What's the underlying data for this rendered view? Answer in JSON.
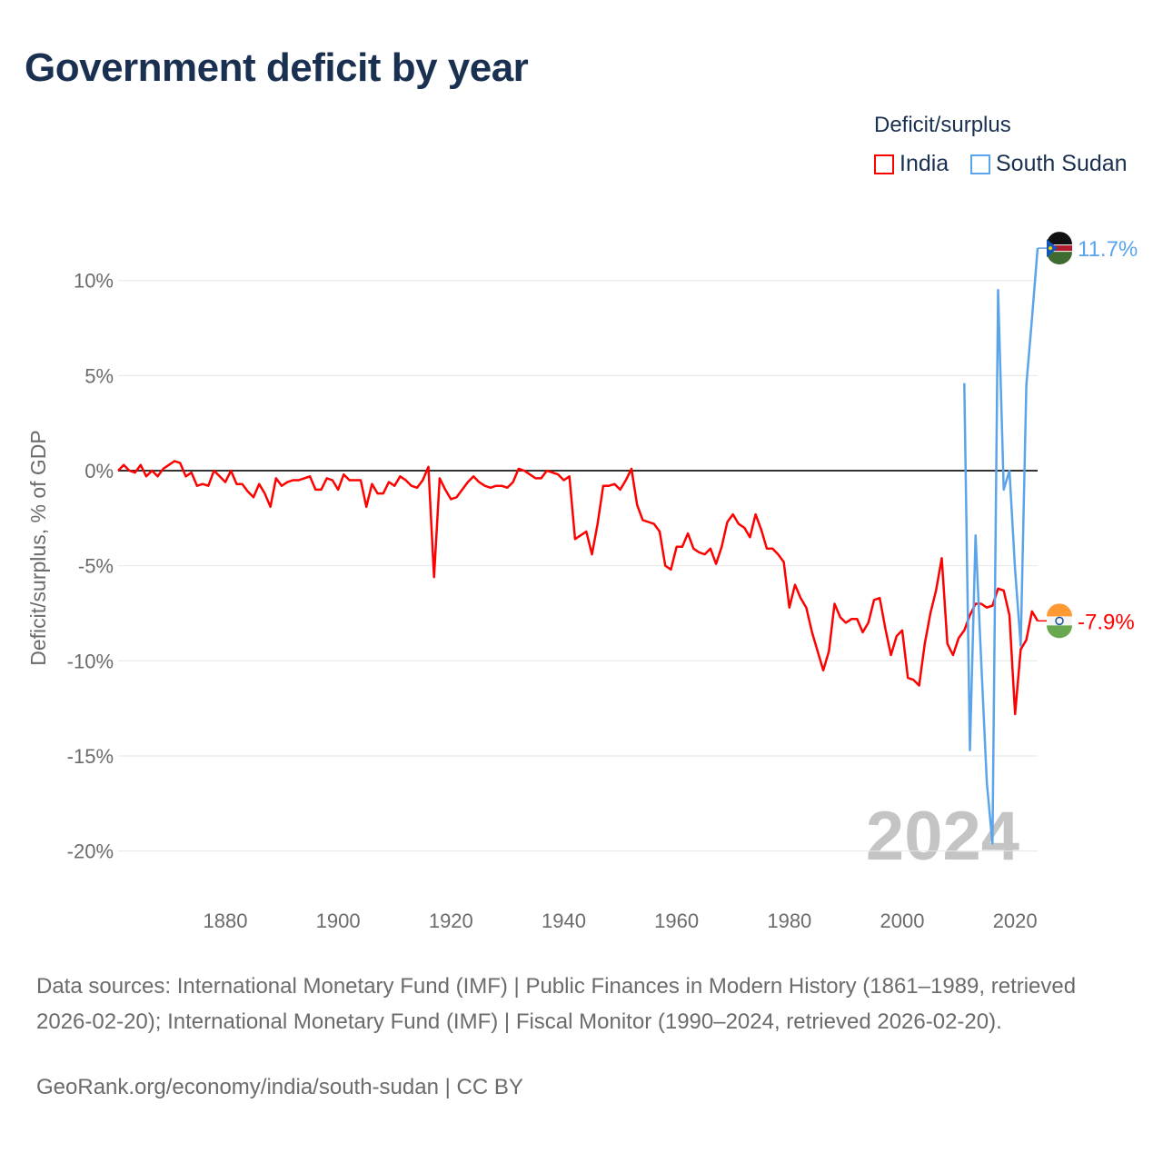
{
  "title": "Government deficit by year",
  "legend": {
    "title": "Deficit/surplus",
    "items": [
      {
        "name": "India",
        "color": "#ff0000"
      },
      {
        "name": "South Sudan",
        "color": "#5ba4ea"
      }
    ]
  },
  "source": "Data sources: International Monetary Fund (IMF) | Public Finances in Modern History (1861–1989, retrieved 2026-02-20); International Monetary Fund (IMF) | Fiscal Monitor (1990–2024, retrieved 2026-02-20).",
  "credit": "GeoRank.org/economy/india/south-sudan | CC BY",
  "chart_data": {
    "type": "line",
    "title": "Government deficit by year",
    "ylabel": "Deficit/surplus, % of GDP",
    "xlabel": "",
    "year_watermark": "2024",
    "xlim": [
      1861,
      2024
    ],
    "ylim": [
      -20,
      11.7
    ],
    "xticks": [
      1880,
      1900,
      1920,
      1940,
      1960,
      1980,
      2000,
      2020
    ],
    "yticks": [
      {
        "v": 10,
        "label": "10%"
      },
      {
        "v": 5,
        "label": "5%"
      },
      {
        "v": 0,
        "label": "0%"
      },
      {
        "v": -5,
        "label": "-5%"
      },
      {
        "v": -10,
        "label": "-10%"
      },
      {
        "v": -15,
        "label": "-15%"
      },
      {
        "v": -20,
        "label": "-20%"
      }
    ],
    "grid": true,
    "legend_position": "top-right",
    "series": [
      {
        "name": "India",
        "color": "#ff0000",
        "end_label": "-7.9%",
        "start": 1861,
        "values": [
          0.0,
          0.3,
          0.0,
          -0.1,
          0.3,
          -0.3,
          0.0,
          -0.3,
          0.1,
          0.3,
          0.5,
          0.4,
          -0.3,
          -0.1,
          -0.8,
          -0.7,
          -0.8,
          0.0,
          -0.3,
          -0.6,
          0.0,
          -0.7,
          -0.7,
          -1.1,
          -1.4,
          -0.7,
          -1.2,
          -1.9,
          -0.4,
          -0.8,
          -0.6,
          -0.5,
          -0.5,
          -0.4,
          -0.3,
          -1.0,
          -1.0,
          -0.4,
          -0.5,
          -1.0,
          -0.2,
          -0.5,
          -0.5,
          -0.5,
          -1.9,
          -0.7,
          -1.2,
          -1.2,
          -0.6,
          -0.8,
          -0.3,
          -0.5,
          -0.8,
          -0.9,
          -0.5,
          0.2,
          -5.6,
          -0.4,
          -1.0,
          -1.5,
          -1.4,
          -1.0,
          -0.6,
          -0.3,
          -0.6,
          -0.8,
          -0.9,
          -0.8,
          -0.8,
          -0.9,
          -0.6,
          0.1,
          0.0,
          -0.2,
          -0.4,
          -0.4,
          0.0,
          -0.1,
          -0.2,
          -0.5,
          -0.3,
          -3.6,
          -3.4,
          -3.2,
          -4.4,
          -2.8,
          -0.8,
          -0.8,
          -0.7,
          -1.0,
          -0.5,
          0.1,
          -1.8,
          -2.6,
          -2.7,
          -2.8,
          -3.2,
          -5.0,
          -5.2,
          -4.0,
          -4.0,
          -3.3,
          -4.1,
          -4.3,
          -4.4,
          -4.1,
          -4.9,
          -4.0,
          -2.7,
          -2.3,
          -2.8,
          -3.0,
          -3.5,
          -2.3,
          -3.1,
          -4.1,
          -4.1,
          -4.4,
          -4.8,
          -7.2,
          -6.0,
          -6.7,
          -7.2,
          -8.5,
          -9.5,
          -10.5,
          -9.5,
          -7.0,
          -7.7,
          -8.0,
          -7.8,
          -7.8,
          -8.5,
          -8.0,
          -6.8,
          -6.7,
          -8.3,
          -9.7,
          -8.7,
          -8.4,
          -10.9,
          -11.0,
          -11.3,
          -9.1,
          -7.5,
          -6.3,
          -4.6,
          -9.1,
          -9.7,
          -8.8,
          -8.4,
          -7.6,
          -7.0,
          -7.0,
          -7.2,
          -7.1,
          -6.2,
          -6.3,
          -7.6,
          -12.8,
          -9.4,
          -8.9,
          -7.4,
          -7.9
        ]
      },
      {
        "name": "South Sudan",
        "color": "#5ba4ea",
        "end_label": "11.7%",
        "start": 2011,
        "values": [
          4.6,
          -14.7,
          -3.4,
          -10.0,
          -16.4,
          -19.6,
          9.5,
          -1.0,
          0.0,
          -5.2,
          -9.2,
          4.5,
          8.0,
          11.7
        ]
      }
    ]
  }
}
